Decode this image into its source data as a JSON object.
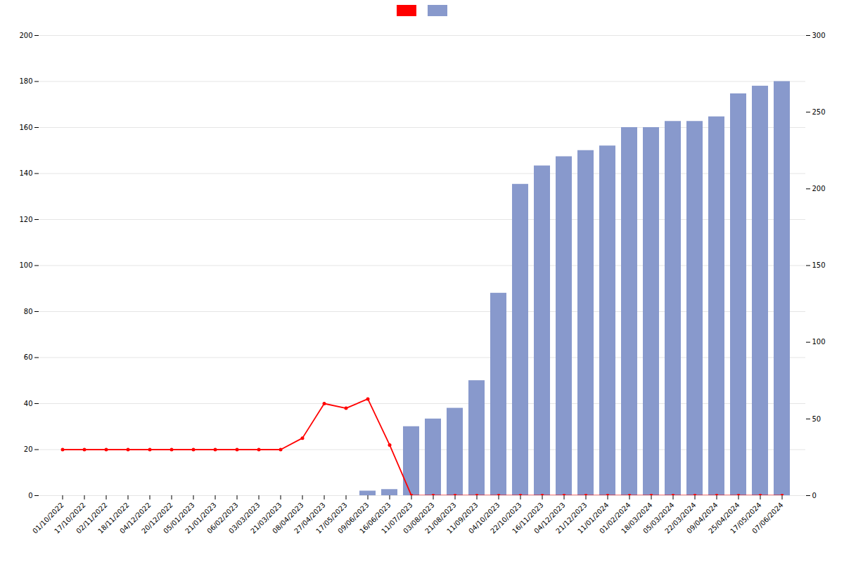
{
  "chart_data": {
    "type": "bar",
    "categories": [
      "01/10/2022",
      "17/10/2022",
      "02/11/2022",
      "18/11/2022",
      "04/12/2022",
      "20/12/2022",
      "05/01/2023",
      "21/01/2023",
      "06/02/2023",
      "03/03/2023",
      "21/03/2023",
      "08/04/2023",
      "27/04/2023",
      "17/05/2023",
      "09/06/2023",
      "16/06/2023",
      "11/07/2023",
      "03/08/2023",
      "21/08/2023",
      "11/09/2023",
      "04/10/2023",
      "22/10/2023",
      "16/11/2023",
      "04/12/2023",
      "21/12/2023",
      "11/01/2024",
      "01/02/2024",
      "18/03/2024",
      "05/03/2024",
      "22/03/2024",
      "09/04/2024",
      "25/04/2024",
      "17/05/2024",
      "07/06/2024"
    ],
    "series": [
      {
        "type": "line",
        "color": "#ff0000",
        "marker": "circle",
        "values": [
          20,
          20,
          20,
          20,
          20,
          20,
          20,
          20,
          20,
          20,
          20,
          25,
          40,
          38,
          42,
          22,
          0,
          0,
          0,
          0,
          0,
          0,
          0,
          0,
          0,
          0,
          0,
          0,
          0,
          0,
          0,
          0,
          0,
          0
        ]
      },
      {
        "type": "bar",
        "color": "#8899cc",
        "axis": "y2",
        "values": [
          0,
          0,
          0,
          0,
          0,
          0,
          0,
          0,
          0,
          0,
          0,
          0,
          0,
          0,
          3,
          4,
          45,
          50,
          57,
          75,
          132,
          203,
          215,
          221,
          225,
          228,
          240,
          240,
          244,
          244,
          247,
          262,
          267,
          270
        ]
      }
    ],
    "ylim": [
      0,
      200
    ],
    "yticks": [
      0,
      20,
      40,
      60,
      80,
      100,
      120,
      140,
      160,
      180,
      200
    ],
    "y2lim": [
      0,
      300
    ],
    "y2ticks": [
      0,
      50,
      100,
      150,
      200,
      250,
      300
    ],
    "grid": true,
    "legend": "top"
  }
}
